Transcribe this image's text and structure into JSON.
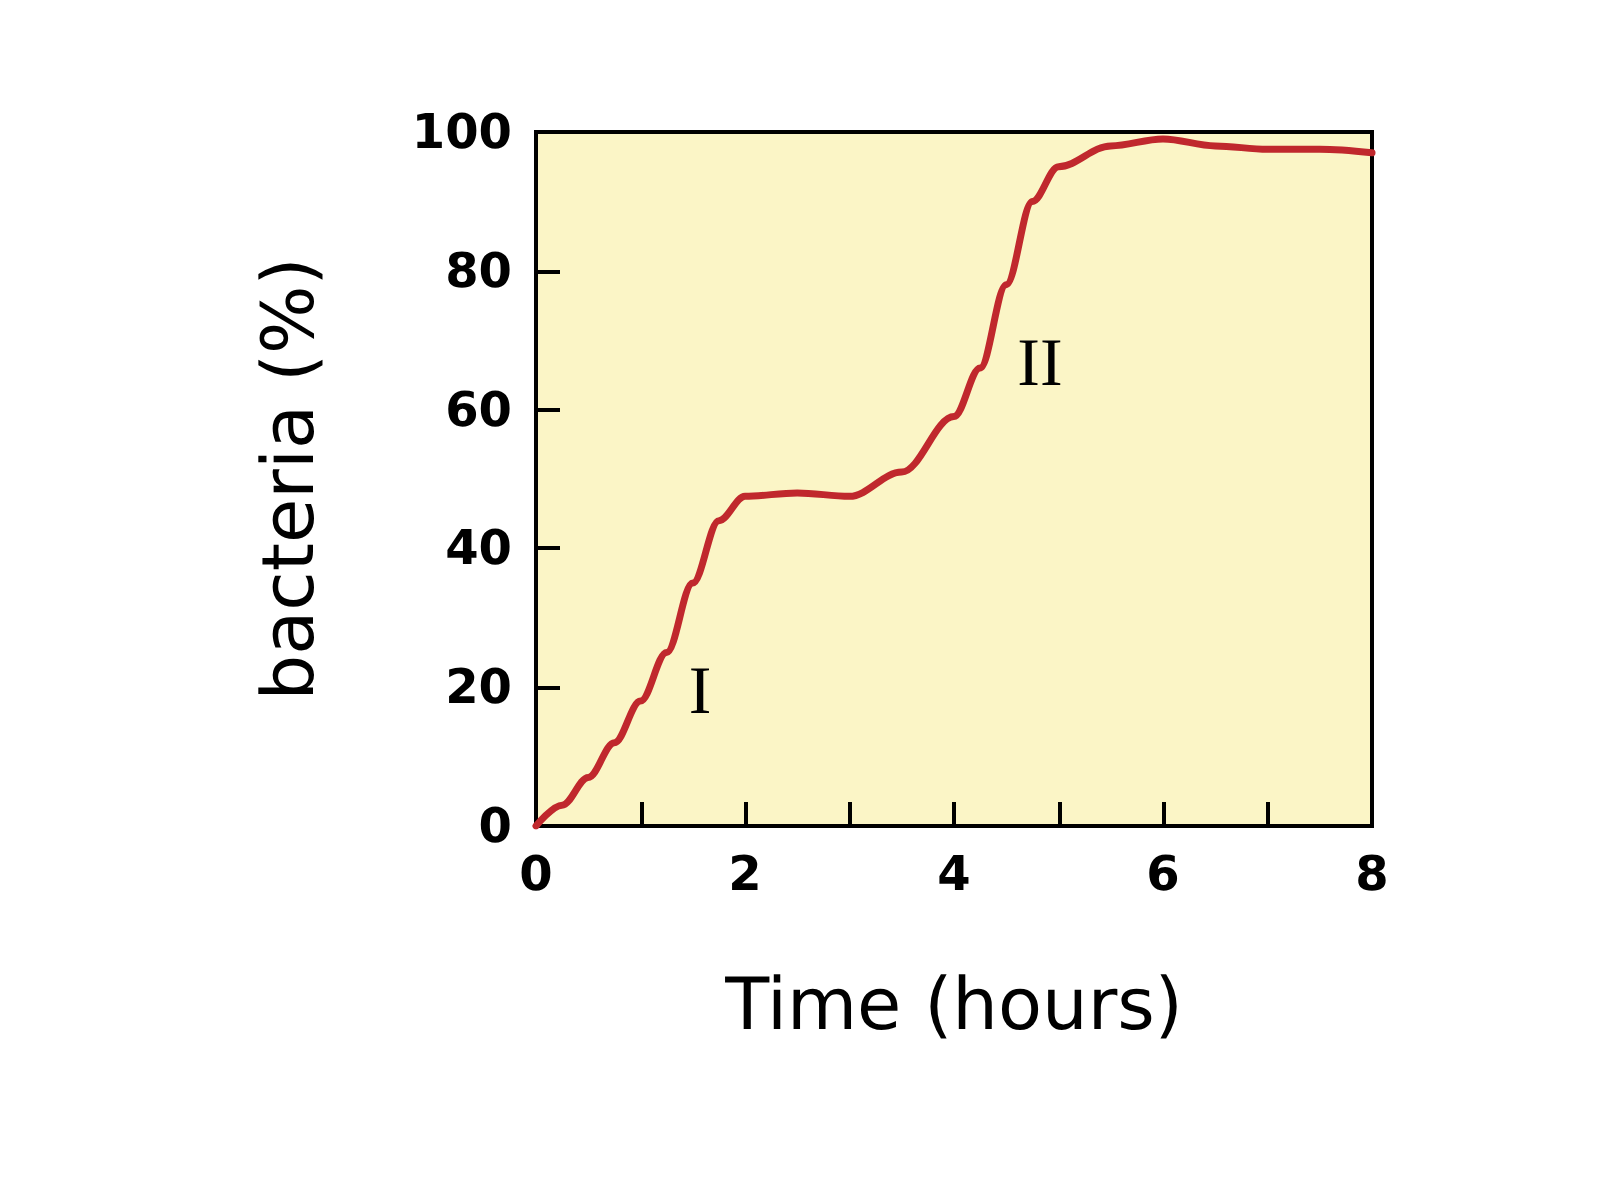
{
  "chart_data": {
    "type": "line",
    "xlabel": "Time (hours)",
    "ylabel": "bacteria (%)",
    "x": [
      0,
      0.25,
      0.5,
      0.75,
      1,
      1.25,
      1.5,
      1.75,
      2,
      2.5,
      3,
      3.5,
      4,
      4.25,
      4.5,
      4.75,
      5,
      5.5,
      6,
      6.5,
      7,
      7.5,
      8
    ],
    "series": [
      {
        "color": "#c0282d",
        "values": [
          0,
          3,
          7,
          12,
          18,
          25,
          35,
          44,
          47.5,
          48,
          47.5,
          51,
          59,
          66,
          78,
          90,
          95,
          98,
          99,
          98,
          97.5,
          97.5,
          97
        ]
      }
    ],
    "xlim": [
      0,
      8
    ],
    "xticks": [
      0,
      {
        "value": 1,
        "label": null
      },
      2,
      {
        "value": 3,
        "label": null
      },
      4,
      {
        "value": 5,
        "label": null
      },
      6,
      {
        "value": 7,
        "label": null
      },
      8
    ],
    "ylim": [
      0,
      100
    ],
    "yticks": [
      0,
      20,
      40,
      60,
      80,
      100
    ],
    "annotations": [
      "I",
      "II"
    ],
    "grid": false,
    "marker": "none",
    "line_style": "solid"
  }
}
